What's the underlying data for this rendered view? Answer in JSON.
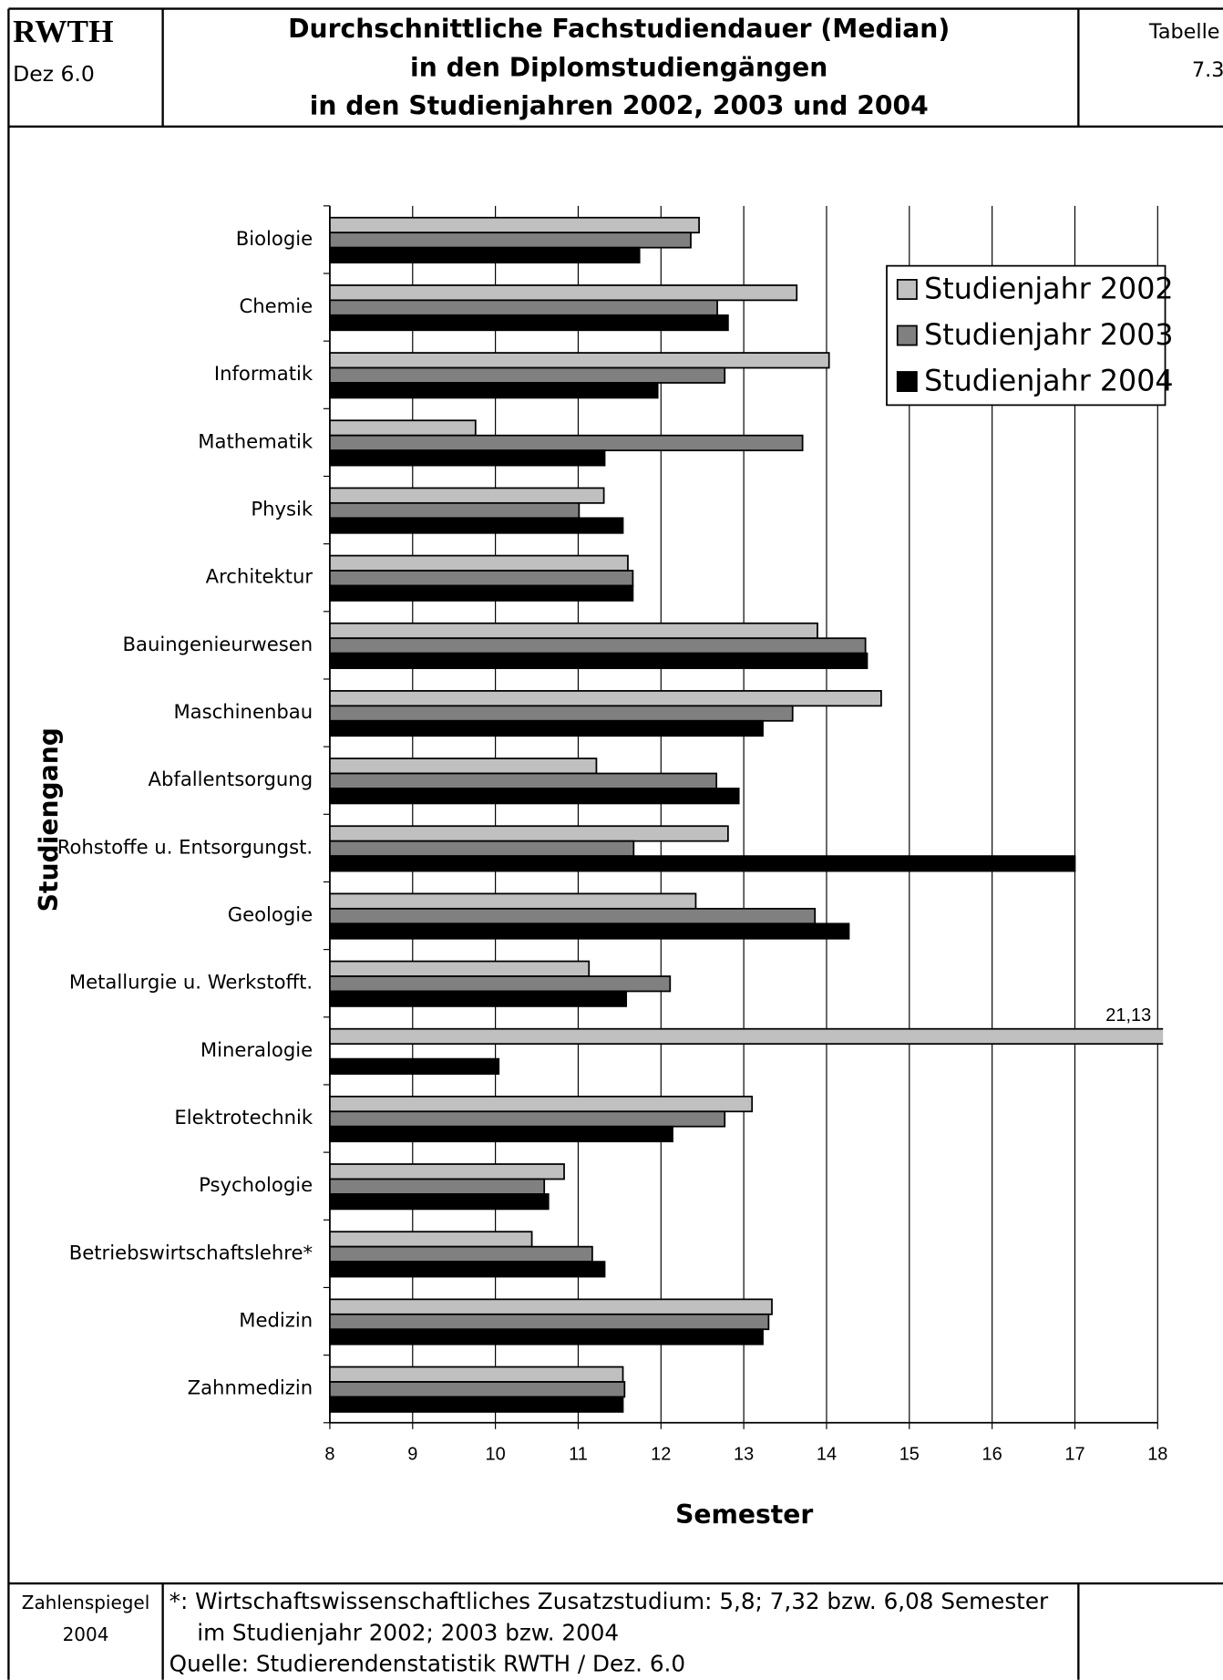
{
  "header": {
    "logo": "RWTH",
    "dept": "Dez 6.0",
    "table_label": "Tabelle",
    "table_number": "7.3"
  },
  "chart_data": {
    "type": "barh",
    "title": [
      "Durchschnittliche Fachstudiendauer (Median)",
      "in den Diplomstudiengängen",
      "in den Studienjahren 2002, 2003 und 2004"
    ],
    "categories": [
      "Biologie",
      "Chemie",
      "Informatik",
      "Mathematik",
      "Physik",
      "Architektur",
      "Bauingenieurwesen",
      "Maschinenbau",
      "Abfallentsorgung",
      "Rohstoffe u. Entsorgungst.",
      "Geologie",
      "Metallurgie u. Werkstofft.",
      "Mineralogie",
      "Elektrotechnik",
      "Psychologie",
      "Betriebswirtschaftslehre*",
      "Medizin",
      "Zahnmedizin"
    ],
    "series": [
      {
        "name": "Studienjahr 2002",
        "color": "#c0c0c0",
        "values": [
          12.46,
          13.64,
          14.03,
          9.76,
          11.31,
          11.6,
          13.89,
          14.66,
          11.22,
          12.81,
          12.42,
          11.13,
          21.13,
          13.1,
          10.83,
          10.44,
          13.34,
          11.54
        ],
        "value_labels": [
          null,
          null,
          null,
          null,
          null,
          null,
          null,
          null,
          null,
          null,
          null,
          null,
          "21,13",
          null,
          null,
          null,
          null,
          null
        ]
      },
      {
        "name": "Studienjahr 2003",
        "color": "#808080",
        "values": [
          12.36,
          12.68,
          12.77,
          13.71,
          11.01,
          11.66,
          14.47,
          13.59,
          12.67,
          11.67,
          13.86,
          12.11,
          null,
          12.77,
          10.59,
          11.17,
          13.3,
          11.56
        ]
      },
      {
        "name": "Studienjahr 2004",
        "color": "#000000",
        "values": [
          11.74,
          12.81,
          11.96,
          11.32,
          11.54,
          11.66,
          14.49,
          13.23,
          12.94,
          17.0,
          14.27,
          11.58,
          10.04,
          12.14,
          10.64,
          11.32,
          13.23,
          11.54
        ]
      }
    ],
    "xlim": [
      8,
      18
    ],
    "xticks": [
      8,
      9,
      10,
      11,
      12,
      13,
      14,
      15,
      16,
      17,
      18
    ],
    "xlabel": "Semester",
    "ylabel": "Studiengang",
    "grid": true,
    "legend": "upper right"
  },
  "footer": {
    "left": [
      "Zahlenspiegel",
      "2004"
    ],
    "notes": [
      "*: Wirtschaftswissenschaftliches Zusatzstudium: 5,8; 7,32 bzw. 6,08 Semester",
      "im Studienjahr 2002; 2003 bzw. 2004"
    ],
    "source": "Quelle: Studierendenstatistik RWTH / Dez. 6.0"
  }
}
